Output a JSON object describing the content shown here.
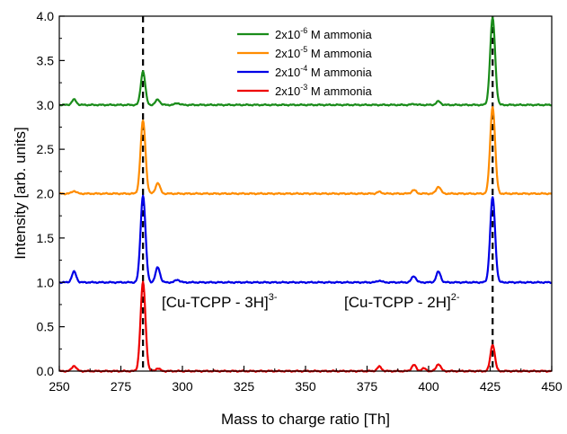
{
  "chart_data": {
    "type": "line",
    "xlabel": "Mass to charge ratio [Th]",
    "ylabel": "Intensity [arb. units]",
    "xlim": [
      250,
      450
    ],
    "ylim": [
      0.0,
      4.0
    ],
    "x_ticks": [
      250,
      275,
      300,
      325,
      350,
      375,
      400,
      425,
      450
    ],
    "y_ticks": [
      "0.0",
      "0.5",
      "1.0",
      "1.5",
      "2.0",
      "2.5",
      "3.0",
      "3.5",
      "4.0"
    ],
    "grid": false,
    "legend_position": "top-center",
    "reference_lines": [
      284,
      426
    ],
    "annotations": [
      {
        "base": "[Cu-TCPP - 3H]",
        "sup": "3-",
        "x": 284,
        "y": 0.72
      },
      {
        "base": "[Cu-TCPP - 2H]",
        "sup": "2-",
        "x": 426,
        "y": 0.72
      }
    ],
    "series": [
      {
        "name": "2x10-6 M ammonia",
        "legend_prefix": "2x10",
        "legend_exp": "-6",
        "legend_suffix": " M ammonia",
        "color": "#1a8c1a",
        "baseline": 3.0,
        "peaks": [
          [
            256,
            0.06
          ],
          [
            284,
            0.38
          ],
          [
            290,
            0.06
          ],
          [
            298,
            0.02
          ],
          [
            394,
            0.01
          ],
          [
            404,
            0.04
          ],
          [
            426,
            0.98
          ]
        ]
      },
      {
        "name": "2x10-5 M ammonia",
        "legend_prefix": "2x10",
        "legend_exp": "-5",
        "legend_suffix": " M ammonia",
        "color": "#ff8c00",
        "baseline": 2.0,
        "peaks": [
          [
            256,
            0.03
          ],
          [
            284,
            0.82
          ],
          [
            290,
            0.12
          ],
          [
            380,
            0.02
          ],
          [
            394,
            0.04
          ],
          [
            404,
            0.08
          ],
          [
            426,
            0.98
          ]
        ]
      },
      {
        "name": "2x10-4 M ammonia",
        "legend_prefix": "2x10",
        "legend_exp": "-4",
        "legend_suffix": " M ammonia",
        "color": "#0000e6",
        "baseline": 1.0,
        "peaks": [
          [
            256,
            0.12
          ],
          [
            284,
            0.98
          ],
          [
            290,
            0.17
          ],
          [
            298,
            0.03
          ],
          [
            380,
            0.02
          ],
          [
            394,
            0.07
          ],
          [
            404,
            0.12
          ],
          [
            426,
            0.96
          ]
        ]
      },
      {
        "name": "2x10-3 M ammonia",
        "legend_prefix": "2x10",
        "legend_exp": "-3",
        "legend_suffix": " M ammonia",
        "color": "#ee0000",
        "baseline": 0.0,
        "peaks": [
          [
            256,
            0.06
          ],
          [
            284,
            1.0
          ],
          [
            290,
            0.03
          ],
          [
            380,
            0.05
          ],
          [
            394,
            0.07
          ],
          [
            398,
            0.03
          ],
          [
            404,
            0.08
          ],
          [
            426,
            0.3
          ]
        ]
      }
    ]
  }
}
